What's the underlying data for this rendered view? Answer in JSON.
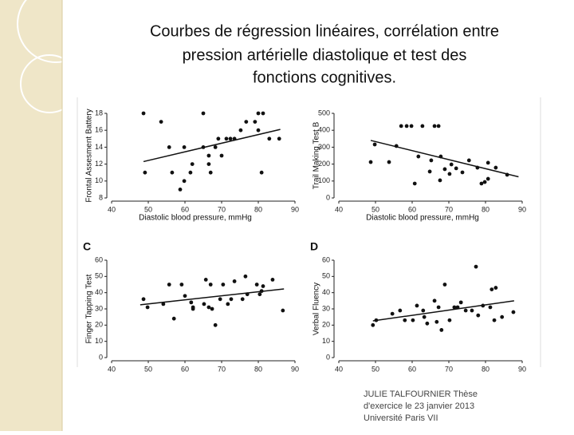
{
  "slide": {
    "title": [
      "Courbes de régression linéaires, corrélation entre",
      "pression artérielle diastolique et test des",
      "fonctions cognitives."
    ],
    "footer": [
      "JULIE TALFOURNIER    Thèse",
      "d'exercice   le 23 janvier 2013",
      "Université Paris VII"
    ]
  },
  "chart_data": [
    {
      "type": "scatter",
      "y_label": "Frontal Assesment Battery",
      "x_label": "Diastolic blood pressure, mmHg",
      "xlim": [
        40,
        90
      ],
      "xticks": [
        40,
        50,
        60,
        70,
        80,
        90
      ],
      "ylim": [
        8,
        18
      ],
      "yticks": [
        8,
        10,
        12,
        14,
        16,
        18
      ],
      "color": "#111111",
      "x": [
        48.7,
        53.5,
        55.7,
        49.1,
        56.5,
        59.8,
        58.7,
        59.8,
        62,
        61.5,
        65,
        65,
        66.5,
        66.5,
        67,
        68.3,
        69.1,
        70,
        71.3,
        72.4,
        73.5,
        75.2,
        76.7,
        79.1,
        80,
        81.3,
        80.9,
        83,
        85.7,
        80
      ],
      "values": [
        18,
        17,
        14,
        11,
        11,
        14,
        9,
        10,
        12,
        11,
        18,
        14,
        13,
        12,
        11,
        14,
        15,
        13,
        15,
        15,
        15,
        16,
        17,
        17,
        18,
        18,
        11,
        15,
        15,
        16
      ],
      "fit_line": {
        "x": [
          48.7,
          86
        ],
        "y": [
          12.3,
          16.1
        ]
      }
    },
    {
      "type": "scatter",
      "y_label": "Trail Making Test B",
      "x_label": "Diastolic blood pressure, mmHg",
      "xlim": [
        40,
        90
      ],
      "xticks": [
        40,
        50,
        60,
        70,
        80,
        90
      ],
      "ylim": [
        0,
        500
      ],
      "yticks": [
        0,
        100,
        200,
        300,
        400,
        500
      ],
      "color": "#111111",
      "x": [
        48.7,
        49.8,
        53.7,
        55.7,
        57,
        58.5,
        59.8,
        60.7,
        61.7,
        62.8,
        64.8,
        65.2,
        66.1,
        67.2,
        67.6,
        67.8,
        68.9,
        70.2,
        70.7,
        72,
        73.7,
        75.5,
        77.8,
        78.9,
        79.8,
        80.7,
        80.7,
        82.8,
        85.9
      ],
      "values": [
        212,
        316,
        212,
        307,
        425,
        425,
        425,
        85,
        245,
        425,
        156,
        222,
        425,
        425,
        104,
        245,
        170,
        142,
        198,
        175,
        151,
        222,
        179,
        85,
        94,
        113,
        208,
        179,
        137
      ],
      "fit_line": {
        "x": [
          48.7,
          89
        ],
        "y": [
          340,
          125
        ]
      }
    },
    {
      "type": "scatter",
      "panel": "C",
      "y_label": "Finger Tapping Test",
      "xlim": [
        40,
        90
      ],
      "xticks": [
        40,
        50,
        60,
        70,
        80,
        90
      ],
      "ylim": [
        0,
        60
      ],
      "yticks": [
        0,
        10,
        20,
        30,
        40,
        50,
        60
      ],
      "color": "#111111",
      "x": [
        48.7,
        49.8,
        54.1,
        55.7,
        57,
        59.1,
        60,
        61.7,
        62.2,
        62.2,
        65.2,
        65.7,
        66.5,
        67.4,
        67,
        68.3,
        69.6,
        70.4,
        71.7,
        72.6,
        73.5,
        75.7,
        76.5,
        77,
        79.6,
        80.4,
        80.9,
        81.3,
        83.9,
        86.7
      ],
      "values": [
        36,
        31,
        33,
        45,
        24,
        45,
        38,
        34,
        31,
        30,
        33,
        48,
        31,
        30,
        45,
        20,
        36,
        45,
        33,
        36,
        47,
        36,
        50,
        39,
        45,
        39,
        41,
        44,
        48,
        29
      ],
      "fit_line": {
        "x": [
          47.8,
          87
        ],
        "y": [
          32.5,
          42.3
        ]
      }
    },
    {
      "type": "scatter",
      "panel": "D",
      "y_label": "Verbal Fluency",
      "xlim": [
        40,
        90
      ],
      "xticks": [
        40,
        50,
        60,
        70,
        80,
        90
      ],
      "ylim": [
        0,
        60
      ],
      "yticks": [
        0,
        10,
        20,
        30,
        40,
        50,
        60
      ],
      "color": "#111111",
      "x": [
        49.3,
        50.2,
        54.6,
        56.7,
        58,
        60.2,
        61.3,
        63,
        63.3,
        64.1,
        66.1,
        66.7,
        67.2,
        68,
        68.9,
        70.2,
        71.5,
        72.4,
        73.3,
        74.6,
        76.3,
        77.4,
        78,
        79.3,
        81.3,
        81.7,
        82.8,
        82.4,
        84.5,
        87.6
      ],
      "values": [
        20,
        23,
        27,
        29,
        23,
        23,
        32,
        29,
        25,
        21,
        35,
        22,
        31,
        17,
        45,
        23,
        31,
        31,
        34,
        29,
        29,
        56,
        26,
        32,
        31,
        42,
        43,
        23,
        25,
        28
      ],
      "fit_line": {
        "x": [
          49.3,
          87.8
        ],
        "y": [
          22.6,
          35
        ]
      }
    }
  ]
}
